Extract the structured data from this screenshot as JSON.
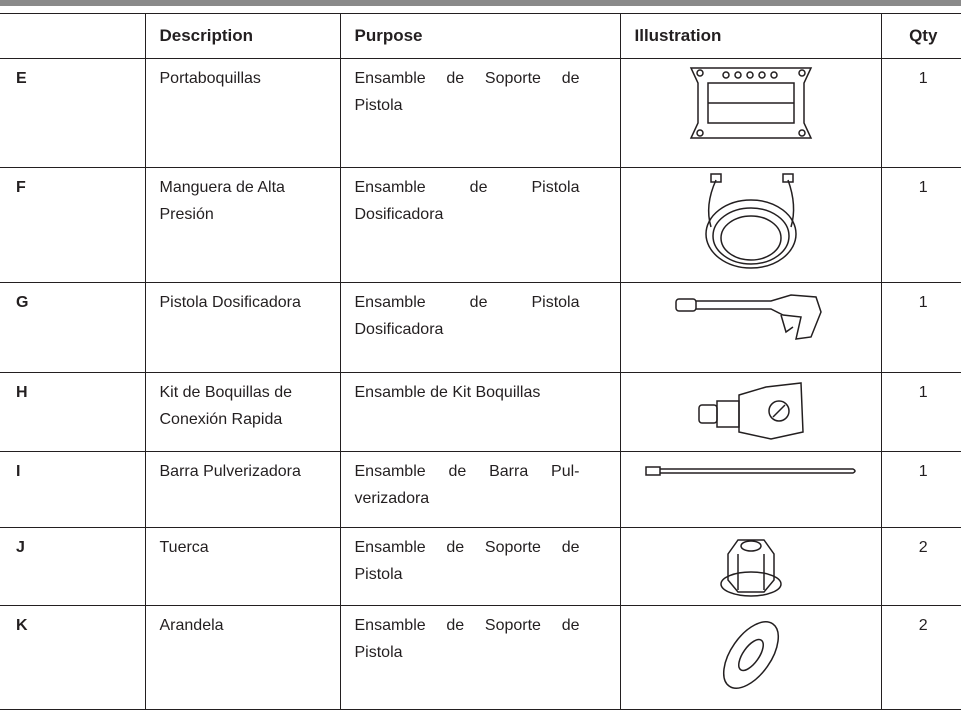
{
  "table": {
    "headers": [
      "Description",
      "Purpose",
      "Illustration",
      "Qty"
    ],
    "rows": [
      {
        "id": "E",
        "description": "Portaboquillas",
        "purpose": "Ensamble de Soporte de Pistola",
        "qty": 1
      },
      {
        "id": "F",
        "description": "Manguera de Alta Presión",
        "purpose": "Ensamble de Pistola Dosificadora",
        "qty": 1
      },
      {
        "id": "G",
        "description": "Pistola Dosificadora",
        "purpose": "Ensamble de Pistola Dosificadora",
        "qty": 1
      },
      {
        "id": "H",
        "description": "Kit de Boquillas de Conexión Rapida",
        "purpose": "Ensamble de Kit Boquillas",
        "qty": 1
      },
      {
        "id": "I",
        "description": "Barra Pulverizadora",
        "purpose": "Ensamble de Barra Pul-verizadora",
        "qty": 1
      },
      {
        "id": "J",
        "description": "Tuerca",
        "purpose": "Ensamble de Soporte de Pistola",
        "qty": 2
      },
      {
        "id": "K",
        "description": "Arandela",
        "purpose": "Ensamble de Soporte de Pistola",
        "qty": 2
      }
    ]
  }
}
